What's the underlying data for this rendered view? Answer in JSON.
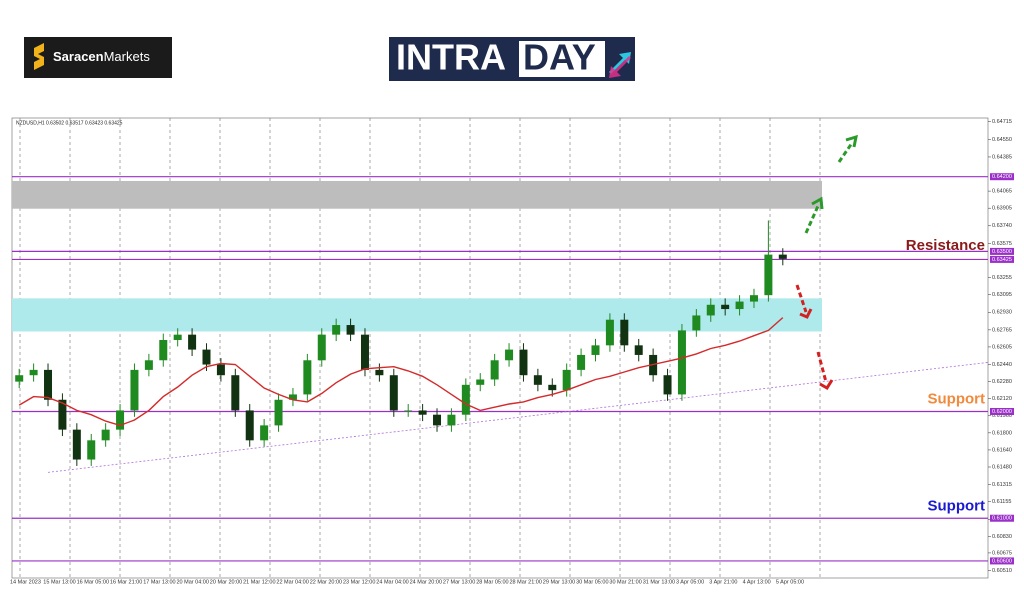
{
  "brand": {
    "bold": "Saracen",
    "rest": "Markets"
  },
  "banner": {
    "left": "INTRA",
    "right": "DAY"
  },
  "chart_data": {
    "type": "candlestick",
    "info": "NZDUSD,H1  0.63502 0.63517 0.63423 0.63425",
    "up_color": "#1f8a1f",
    "down_color": "#123312",
    "open": [
      0.6228,
      0.6234,
      0.6239,
      0.6211,
      0.6183,
      0.6155,
      0.6173,
      0.6183,
      0.6201,
      0.6239,
      0.6248,
      0.6267,
      0.6272,
      0.6258,
      0.6244,
      0.6234,
      0.6201,
      0.6173,
      0.6187,
      0.6211,
      0.6216,
      0.6248,
      0.6272,
      0.6281,
      0.6272,
      0.6239,
      0.6234,
      0.6201,
      0.6201,
      0.6197,
      0.6187,
      0.6197,
      0.6225,
      0.623,
      0.6248,
      0.6258,
      0.6234,
      0.6225,
      0.622,
      0.6239,
      0.6253,
      0.6262,
      0.6286,
      0.6262,
      0.6253,
      0.6234,
      0.6216,
      0.6276,
      0.629,
      0.63,
      0.6296,
      0.6303,
      0.6309,
      0.6347
    ],
    "high": [
      0.624,
      0.6245,
      0.6245,
      0.6217,
      0.6189,
      0.6179,
      0.6189,
      0.6207,
      0.6245,
      0.6254,
      0.6273,
      0.6278,
      0.6278,
      0.6264,
      0.625,
      0.624,
      0.6207,
      0.6193,
      0.6217,
      0.6222,
      0.6254,
      0.6278,
      0.6287,
      0.6287,
      0.6278,
      0.6245,
      0.624,
      0.6207,
      0.6207,
      0.6203,
      0.6203,
      0.6231,
      0.6236,
      0.6254,
      0.6264,
      0.6264,
      0.624,
      0.6231,
      0.6245,
      0.6259,
      0.6268,
      0.6292,
      0.6292,
      0.6268,
      0.6259,
      0.624,
      0.6282,
      0.6296,
      0.6306,
      0.6306,
      0.6309,
      0.6315,
      0.6379,
      0.6353
    ],
    "low": [
      0.6222,
      0.6228,
      0.6205,
      0.6177,
      0.6149,
      0.6149,
      0.6167,
      0.6177,
      0.6195,
      0.6233,
      0.6242,
      0.6261,
      0.6252,
      0.6238,
      0.6228,
      0.6195,
      0.6167,
      0.6167,
      0.6181,
      0.6205,
      0.621,
      0.6242,
      0.6266,
      0.6266,
      0.6233,
      0.6228,
      0.6195,
      0.6195,
      0.6191,
      0.6181,
      0.6181,
      0.6191,
      0.6219,
      0.6224,
      0.6242,
      0.6228,
      0.6219,
      0.6214,
      0.6214,
      0.6233,
      0.6247,
      0.6256,
      0.6256,
      0.6247,
      0.6228,
      0.621,
      0.621,
      0.627,
      0.6284,
      0.629,
      0.629,
      0.6297,
      0.6303,
      0.6337
    ],
    "close": [
      0.6234,
      0.6239,
      0.6211,
      0.6183,
      0.6155,
      0.6173,
      0.6183,
      0.6201,
      0.6239,
      0.6248,
      0.6267,
      0.6272,
      0.6258,
      0.6244,
      0.6234,
      0.6201,
      0.6173,
      0.6187,
      0.6211,
      0.6216,
      0.6248,
      0.6272,
      0.6281,
      0.6272,
      0.6239,
      0.6234,
      0.6201,
      0.6201,
      0.6197,
      0.6187,
      0.6197,
      0.6225,
      0.623,
      0.6248,
      0.6258,
      0.6234,
      0.6225,
      0.622,
      0.6239,
      0.6253,
      0.6262,
      0.6286,
      0.6262,
      0.6253,
      0.6234,
      0.6216,
      0.6276,
      0.629,
      0.63,
      0.6296,
      0.6303,
      0.6309,
      0.6347,
      0.6343
    ],
    "ma": {
      "color": "#d42a2a",
      "values": [
        0.6206,
        0.6214,
        0.6213,
        0.6208,
        0.6201,
        0.6197,
        0.6191,
        0.6187,
        0.6192,
        0.6201,
        0.6214,
        0.6223,
        0.6234,
        0.6242,
        0.6245,
        0.6244,
        0.6233,
        0.6222,
        0.6216,
        0.6211,
        0.6209,
        0.6217,
        0.6227,
        0.6235,
        0.624,
        0.6241,
        0.6242,
        0.6238,
        0.6233,
        0.6225,
        0.6216,
        0.6207,
        0.6201,
        0.6204,
        0.6207,
        0.6209,
        0.6213,
        0.6216,
        0.622,
        0.6225,
        0.623,
        0.6233,
        0.6237,
        0.6241,
        0.6244,
        0.6247,
        0.625,
        0.6254,
        0.6259,
        0.6262,
        0.6266,
        0.6271,
        0.6276,
        0.6288
      ]
    },
    "trendline": {
      "color": "#b070d8",
      "start": 0.6143,
      "end": 0.6246
    },
    "zones": [
      {
        "color": "#bdbdbd",
        "range": [
          0.639,
          0.6416
        ]
      },
      {
        "color": "#aee9ec",
        "range": [
          0.6275,
          0.6306
        ]
      }
    ],
    "levels": [
      {
        "value": 0.642,
        "label": "0.64200"
      },
      {
        "value": 0.635,
        "label": "0.63500"
      },
      {
        "value": 0.63425,
        "label": "0.63425"
      },
      {
        "value": 0.62,
        "label": "0.62000"
      },
      {
        "value": 0.61,
        "label": "0.61000"
      },
      {
        "value": 0.606,
        "label": "0.60600"
      }
    ],
    "level_color": "#9b30c8",
    "annotations": [
      {
        "text": "Resistance",
        "color": "#8b1a1a",
        "value": 0.6355
      },
      {
        "text": "Support",
        "color": "#f08a3c",
        "value": 0.6211
      },
      {
        "text": "Support",
        "color": "#1a1ad0",
        "value": 0.6111
      }
    ],
    "ylim": [
      0.6044,
      0.6475
    ],
    "yticks": [
      0.64715,
      {
        "value": 0.6455,
        "label": "0.64550"
      },
      0.64385,
      0.64065,
      0.63905,
      {
        "value": 0.6374,
        "label": "0.63740"
      },
      0.63575,
      0.63255,
      0.63095,
      {
        "value": 0.6293,
        "label": "0.62930"
      },
      0.62765,
      0.62605,
      {
        "value": 0.6244,
        "label": "0.62440"
      },
      {
        "value": 0.6228,
        "label": "0.62280"
      },
      {
        "value": 0.6212,
        "label": "0.62120"
      },
      {
        "value": 0.6196,
        "label": "0.61960"
      },
      {
        "value": 0.618,
        "label": "0.61800"
      },
      {
        "value": 0.6164,
        "label": "0.61640"
      },
      {
        "value": 0.6148,
        "label": "0.61480"
      },
      0.61315,
      0.61155,
      {
        "value": 0.6099,
        "label": "0.60990"
      },
      {
        "value": 0.6083,
        "label": "0.60830"
      },
      0.60675,
      {
        "value": 0.6051,
        "label": "0.60510"
      }
    ],
    "x_labels": [
      "14 Mar 2023",
      "15 Mar 13:00",
      "16 Mar 05:00",
      "16 Mar 21:00",
      "17 Mar 13:00",
      "20 Mar 04:00",
      "20 Mar 20:00",
      "21 Mar 12:00",
      "22 Mar 04:00",
      "22 Mar 20:00",
      "23 Mar 12:00",
      "24 Mar 04:00",
      "24 Mar 20:00",
      "27 Mar 13:00",
      "28 Mar 05:00",
      "28 Mar 21:00",
      "29 Mar 13:00",
      "30 Mar 05:00",
      "30 Mar 21:00",
      "31 Mar 13:00",
      "3 Apr 05:00",
      "3 Apr 21:00",
      "4 Apr 13:00",
      "5 Apr 05:00"
    ]
  }
}
